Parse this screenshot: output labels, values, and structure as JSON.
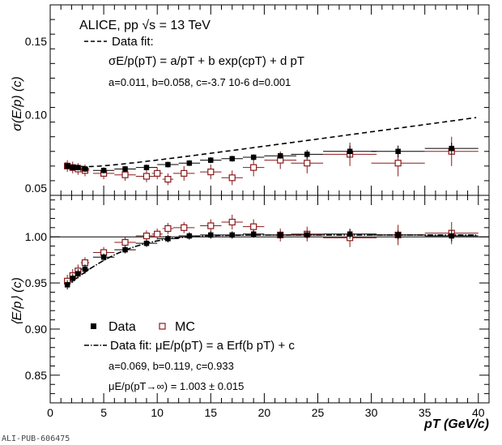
{
  "figure_id": "ALI-PUB-606475",
  "colors": {
    "data": "#000000",
    "mc": "#8b1a1a",
    "fit": "#000000"
  },
  "chart_data": [
    {
      "type": "scatter",
      "panel": "top",
      "ylabel": "σ(E/p) (c)",
      "xlim": [
        0,
        41
      ],
      "ylim": [
        0.045,
        0.175
      ],
      "yticks": [
        0.05,
        0.1,
        0.15
      ],
      "ytick_labels": [
        "0.05",
        "0.10",
        "0.15"
      ],
      "header": "ALICE, pp √s = 13 TeV",
      "fit_legend": "Data fit:",
      "fit_formula": "σE/p(pT) = a/pT + b exp(cpT) + d pT",
      "fit_params": "a=0.011, b=0.058, c=-3.7 10-6 d=0.001",
      "series": [
        {
          "name": "Data",
          "marker": "filled-square",
          "x": [
            1.6,
            2.1,
            2.6,
            3.25,
            5.0,
            7.0,
            9.0,
            11.0,
            13.0,
            15.0,
            17.0,
            19.0,
            21.5,
            24.0,
            28.0,
            32.5,
            37.5
          ],
          "xerr": [
            0.25,
            0.25,
            0.25,
            0.4,
            1.0,
            1.0,
            1.0,
            1.0,
            1.0,
            1.0,
            1.0,
            1.0,
            1.5,
            1.5,
            2.5,
            2.5,
            2.5
          ],
          "y": [
            0.065,
            0.064,
            0.064,
            0.063,
            0.062,
            0.063,
            0.064,
            0.066,
            0.067,
            0.069,
            0.07,
            0.071,
            0.072,
            0.073,
            0.075,
            0.075,
            0.077
          ],
          "yerr": [
            0.002,
            0.002,
            0.002,
            0.002,
            0.002,
            0.002,
            0.002,
            0.002,
            0.002,
            0.002,
            0.002,
            0.002,
            0.002,
            0.003,
            0.004,
            0.004,
            0.004
          ]
        },
        {
          "name": "MC",
          "marker": "open-square",
          "x": [
            1.6,
            2.1,
            2.6,
            3.25,
            5.0,
            7.0,
            9.0,
            10.0,
            11.0,
            12.5,
            15.0,
            17.0,
            19.0,
            21.5,
            24.0,
            28.0,
            32.5,
            37.5
          ],
          "xerr": [
            0.25,
            0.25,
            0.25,
            0.4,
            1.0,
            1.0,
            1.0,
            0.5,
            0.5,
            1.0,
            1.0,
            1.0,
            1.0,
            1.5,
            1.5,
            2.5,
            2.5,
            2.5
          ],
          "y": [
            0.065,
            0.064,
            0.063,
            0.062,
            0.06,
            0.059,
            0.058,
            0.06,
            0.056,
            0.06,
            0.061,
            0.057,
            0.064,
            0.069,
            0.067,
            0.073,
            0.067,
            0.075
          ],
          "yerr": [
            0.004,
            0.004,
            0.004,
            0.004,
            0.004,
            0.004,
            0.004,
            0.004,
            0.004,
            0.005,
            0.005,
            0.005,
            0.006,
            0.006,
            0.007,
            0.008,
            0.009,
            0.01
          ]
        }
      ],
      "fit": {
        "name": "Data fit",
        "style": "dashed",
        "a": 0.011,
        "b": 0.058,
        "c": -3.7e-06,
        "d": 0.001
      }
    },
    {
      "type": "scatter",
      "panel": "bottom",
      "ylabel": "⟨E/p⟩ (c)",
      "xlabel": "pT (GeV/c)",
      "xlim": [
        0,
        41
      ],
      "ylim": [
        0.82,
        1.045
      ],
      "xticks": [
        0,
        5,
        10,
        15,
        20,
        25,
        30,
        35,
        40
      ],
      "xtick_labels": [
        "0",
        "5",
        "10",
        "15",
        "20",
        "25",
        "30",
        "35",
        "40"
      ],
      "yticks": [
        0.85,
        0.9,
        0.95,
        1.0
      ],
      "ytick_labels": [
        "0.85",
        "0.90",
        "0.95",
        "1.00"
      ],
      "reference_line": 1.0,
      "legend_data": "Data",
      "legend_mc": "MC",
      "fit_formula": "Data fit: μE/p(pT) = a Erf(b pT) + c",
      "fit_params": "a=0.069, b=0.119, c=0.933",
      "asymptote": "μE/p(pT→∞) = 1.003 ± 0.015",
      "series": [
        {
          "name": "Data",
          "marker": "filled-square",
          "x": [
            1.6,
            2.1,
            2.6,
            3.25,
            5.0,
            7.0,
            9.0,
            11.0,
            13.0,
            15.0,
            17.0,
            19.0,
            21.5,
            24.0,
            28.0,
            32.5,
            37.5
          ],
          "xerr": [
            0.25,
            0.25,
            0.25,
            0.4,
            1.0,
            1.0,
            1.0,
            1.0,
            1.0,
            1.0,
            1.0,
            1.0,
            1.5,
            1.5,
            2.5,
            2.5,
            2.5
          ],
          "y": [
            0.948,
            0.955,
            0.96,
            0.965,
            0.978,
            0.986,
            0.993,
            0.998,
            1.001,
            1.002,
            1.002,
            1.003,
            1.002,
            1.002,
            1.003,
            1.002,
            1.001
          ],
          "yerr": [
            0.005,
            0.005,
            0.005,
            0.005,
            0.004,
            0.004,
            0.004,
            0.004,
            0.004,
            0.004,
            0.004,
            0.004,
            0.004,
            0.004,
            0.005,
            0.005,
            0.006
          ]
        },
        {
          "name": "MC",
          "marker": "open-square",
          "x": [
            1.6,
            2.1,
            2.6,
            3.25,
            5.0,
            7.0,
            9.0,
            10.0,
            11.0,
            12.5,
            15.0,
            17.0,
            19.0,
            21.5,
            24.0,
            28.0,
            32.5,
            37.5
          ],
          "xerr": [
            0.25,
            0.25,
            0.25,
            0.4,
            1.0,
            1.0,
            1.0,
            0.5,
            0.5,
            1.0,
            1.0,
            1.0,
            1.0,
            1.5,
            1.5,
            2.5,
            2.5,
            2.5
          ],
          "y": [
            0.952,
            0.958,
            0.963,
            0.972,
            0.983,
            0.994,
            1.001,
            1.003,
            1.009,
            1.01,
            1.012,
            1.016,
            1.011,
            1.002,
            1.003,
            0.999,
            1.002,
            1.004
          ],
          "yerr": [
            0.007,
            0.007,
            0.007,
            0.006,
            0.006,
            0.006,
            0.006,
            0.006,
            0.006,
            0.006,
            0.007,
            0.008,
            0.008,
            0.007,
            0.008,
            0.01,
            0.011,
            0.012
          ]
        }
      ],
      "fit": {
        "name": "Data fit",
        "style": "dash-dot",
        "a": 0.069,
        "b": 0.119,
        "c": 0.933
      }
    }
  ]
}
